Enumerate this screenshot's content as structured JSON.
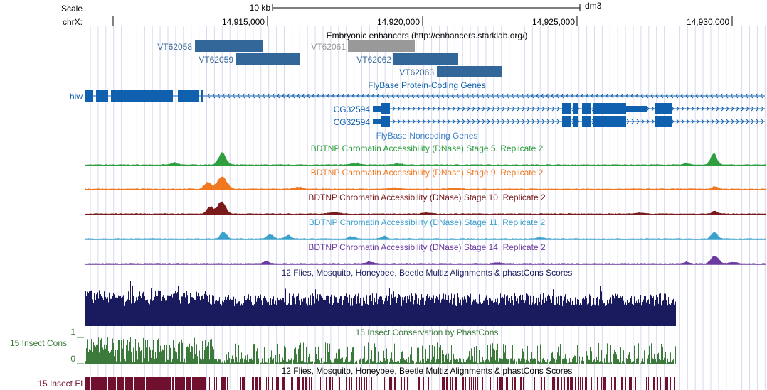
{
  "ruler": {
    "scale_label": "Scale",
    "chrom_label": "chrX:",
    "scale_bar_text": "10 kb",
    "assembly": "dm3",
    "positions": [
      "14,915,000",
      "14,920,000",
      "14,925,000",
      "14,930,000"
    ]
  },
  "tracks": {
    "enhancers": {
      "title": "Embryonic enhancers (http://enhancers.starklab.org/)",
      "items": [
        {
          "name": "VT62058",
          "color": "#336699"
        },
        {
          "name": "VT62059",
          "color": "#336699"
        },
        {
          "name": "VT62061",
          "color": "#999999"
        },
        {
          "name": "VT62062",
          "color": "#336699"
        },
        {
          "name": "VT62063",
          "color": "#336699"
        }
      ]
    },
    "coding_genes": {
      "title": "FlyBase Protein-Coding Genes",
      "color": "#1060b0",
      "items": [
        {
          "name": "hiw",
          "strand": "-"
        },
        {
          "name": "CG32594",
          "strand": "+"
        },
        {
          "name": "CG32594",
          "strand": "+"
        }
      ]
    },
    "noncoding_genes": {
      "title": "FlyBase Noncoding Genes"
    },
    "dnase": [
      {
        "title": "BDTNP Chromatin Accessibility (DNase) Stage 5, Replicate 2",
        "color": "#2e9e3e"
      },
      {
        "title": "BDTNP Chromatin Accessibility (DNase) Stage 9, Replicate 2",
        "color": "#f07820"
      },
      {
        "title": "BDTNP Chromatin Accessibility (DNase) Stage 10, Replicate 2",
        "color": "#7a1a1a"
      },
      {
        "title": "BDTNP Chromatin Accessibility (DNase) Stage 11, Replicate 2",
        "color": "#3aa0cc"
      },
      {
        "title": "BDTNP Chromatin Accessibility (DNase) Stage 14, Replicate 2",
        "color": "#6a3aa0"
      }
    ],
    "multiz": {
      "title": "12 Flies, Mosquito, Honeybee, Beetle Multiz Alignments & phastCons Scores",
      "color": "#1a1a5e"
    },
    "phastcons": {
      "title": "15 Insect Conservation by PhastCons",
      "left_label": "15 Insect Cons",
      "axis_max": "1",
      "axis_min": "0",
      "color": "#3c7a3c"
    },
    "elements": {
      "title": "12 Flies, Mosquito, Honeybee, Beetle Multiz Alignments & phastCons Scores",
      "left_label": "15 Insect El",
      "color": "#700f2e"
    }
  }
}
